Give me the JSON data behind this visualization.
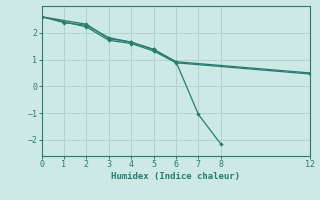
{
  "xlabel": "Humidex (Indice chaleur)",
  "background_color": "#cce9e5",
  "grid_color": "#afd4cf",
  "line_color": "#2a7a6e",
  "xlim": [
    0,
    12
  ],
  "ylim": [
    -2.6,
    3.0
  ],
  "yticks": [
    -2,
    -1,
    0,
    1,
    2
  ],
  "xticks": [
    0,
    1,
    2,
    3,
    4,
    5,
    6,
    7,
    8,
    12
  ],
  "line1_x": [
    0,
    1,
    2,
    3,
    4,
    5,
    6,
    7,
    8
  ],
  "line1_y": [
    2.6,
    2.38,
    2.28,
    1.82,
    1.65,
    1.38,
    0.92,
    -1.05,
    -2.15
  ],
  "line2_x": [
    0,
    2,
    3,
    4,
    5,
    6,
    12
  ],
  "line2_y": [
    2.6,
    2.32,
    1.78,
    1.65,
    1.38,
    0.92,
    0.5
  ],
  "line3_x": [
    0,
    2,
    3,
    4,
    5,
    6,
    12
  ],
  "line3_y": [
    2.6,
    2.22,
    1.72,
    1.6,
    1.32,
    0.88,
    0.46
  ]
}
